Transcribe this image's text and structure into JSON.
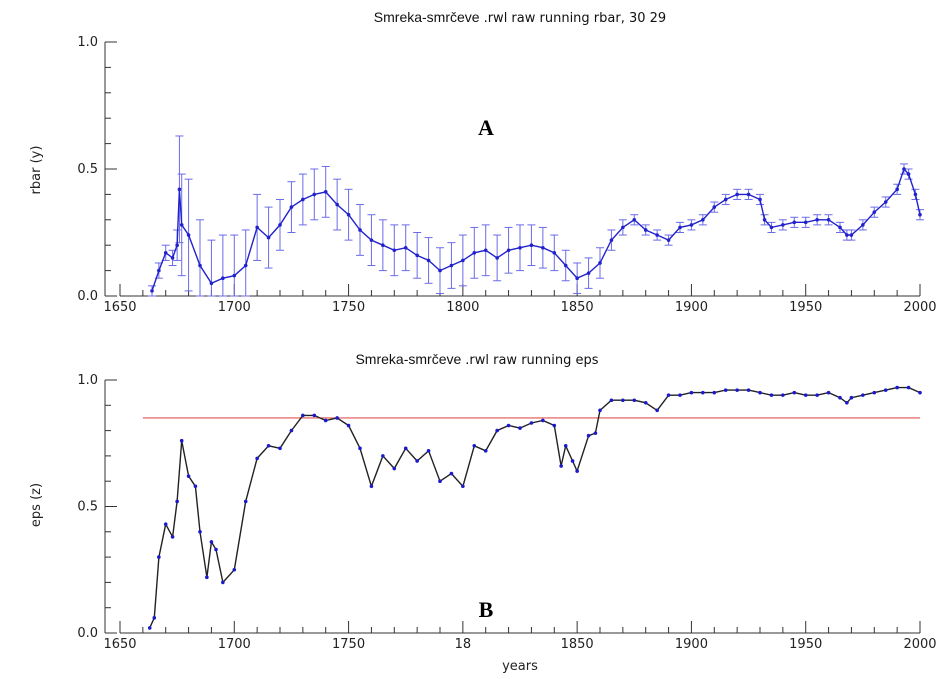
{
  "chart_data": [
    {
      "type": "line",
      "panel_label": "A",
      "title_main": "Smreka-smrčeve",
      "title_rest": ".rwl raw running rbar,   30  29",
      "xlabel": "",
      "ylabel": "rbar (y)",
      "xlim": [
        1650,
        2000
      ],
      "ylim": [
        0.0,
        1.0
      ],
      "x_ticks": [
        "1650",
        "1700",
        "1750",
        "1800",
        "1850",
        "1900",
        "1950",
        "2000"
      ],
      "y_ticks": [
        "0.0",
        "0.5",
        "1.0"
      ],
      "grid": false,
      "error_bars": true,
      "series": [
        {
          "color": "#2222cc",
          "x": [
            1664,
            1667,
            1670,
            1673,
            1675,
            1676,
            1677,
            1680,
            1685,
            1690,
            1695,
            1700,
            1705,
            1710,
            1715,
            1720,
            1725,
            1730,
            1735,
            1740,
            1745,
            1750,
            1755,
            1760,
            1765,
            1770,
            1775,
            1780,
            1785,
            1790,
            1795,
            1800,
            1805,
            1810,
            1815,
            1820,
            1825,
            1830,
            1835,
            1840,
            1845,
            1850,
            1855,
            1860,
            1865,
            1870,
            1875,
            1880,
            1885,
            1890,
            1895,
            1900,
            1905,
            1910,
            1915,
            1920,
            1925,
            1930,
            1932,
            1935,
            1940,
            1945,
            1950,
            1955,
            1960,
            1965,
            1968,
            1970,
            1975,
            1980,
            1985,
            1990,
            1993,
            1995,
            1998,
            2000
          ],
          "y": [
            0.02,
            0.1,
            0.17,
            0.15,
            0.2,
            0.42,
            0.28,
            0.24,
            0.12,
            0.05,
            0.07,
            0.08,
            0.12,
            0.27,
            0.23,
            0.28,
            0.35,
            0.38,
            0.4,
            0.41,
            0.36,
            0.32,
            0.26,
            0.22,
            0.2,
            0.18,
            0.19,
            0.16,
            0.14,
            0.1,
            0.12,
            0.14,
            0.17,
            0.18,
            0.15,
            0.18,
            0.19,
            0.2,
            0.19,
            0.17,
            0.12,
            0.07,
            0.09,
            0.13,
            0.22,
            0.27,
            0.3,
            0.26,
            0.24,
            0.22,
            0.27,
            0.28,
            0.3,
            0.35,
            0.38,
            0.4,
            0.4,
            0.38,
            0.3,
            0.27,
            0.28,
            0.29,
            0.29,
            0.3,
            0.3,
            0.27,
            0.24,
            0.24,
            0.28,
            0.33,
            0.37,
            0.42,
            0.5,
            0.48,
            0.4,
            0.32
          ],
          "err": [
            0.02,
            0.03,
            0.03,
            0.03,
            0.06,
            0.21,
            0.2,
            0.22,
            0.18,
            0.17,
            0.17,
            0.16,
            0.14,
            0.13,
            0.12,
            0.1,
            0.1,
            0.1,
            0.1,
            0.1,
            0.1,
            0.1,
            0.1,
            0.1,
            0.1,
            0.1,
            0.09,
            0.09,
            0.09,
            0.09,
            0.09,
            0.1,
            0.1,
            0.1,
            0.09,
            0.09,
            0.09,
            0.08,
            0.08,
            0.07,
            0.06,
            0.06,
            0.06,
            0.06,
            0.04,
            0.03,
            0.02,
            0.02,
            0.02,
            0.02,
            0.02,
            0.02,
            0.02,
            0.02,
            0.02,
            0.02,
            0.02,
            0.02,
            0.02,
            0.02,
            0.02,
            0.02,
            0.02,
            0.02,
            0.02,
            0.02,
            0.02,
            0.02,
            0.02,
            0.02,
            0.02,
            0.02,
            0.02,
            0.02,
            0.02,
            0.02
          ]
        }
      ]
    },
    {
      "type": "line",
      "panel_label": "B",
      "title_main": "Smreka-smrčeve",
      "title_rest": ".rwl raw running eps",
      "xlabel": "years",
      "ylabel": "eps (z)",
      "xlim": [
        1650,
        2000
      ],
      "ylim": [
        0.0,
        1.0
      ],
      "x_ticks": [
        "1650",
        "1700",
        "1750",
        "18",
        "1850",
        "1900",
        "1950",
        "2000"
      ],
      "y_ticks": [
        "0.0",
        "0.5",
        "1.0"
      ],
      "grid": false,
      "threshold": {
        "y": 0.85,
        "color": "#e05555"
      },
      "series": [
        {
          "color": "#1a1acc",
          "line_color": "#222222",
          "x": [
            1663,
            1665,
            1667,
            1670,
            1673,
            1675,
            1677,
            1680,
            1683,
            1685,
            1688,
            1690,
            1692,
            1695,
            1700,
            1705,
            1710,
            1715,
            1720,
            1725,
            1730,
            1735,
            1740,
            1745,
            1750,
            1755,
            1760,
            1765,
            1770,
            1775,
            1780,
            1785,
            1790,
            1795,
            1800,
            1805,
            1810,
            1815,
            1820,
            1825,
            1830,
            1835,
            1840,
            1843,
            1845,
            1848,
            1850,
            1855,
            1858,
            1860,
            1865,
            1870,
            1875,
            1880,
            1885,
            1890,
            1895,
            1900,
            1905,
            1910,
            1915,
            1920,
            1925,
            1930,
            1935,
            1940,
            1945,
            1950,
            1955,
            1960,
            1965,
            1968,
            1970,
            1975,
            1980,
            1985,
            1990,
            1995,
            2000
          ],
          "y": [
            0.02,
            0.06,
            0.3,
            0.43,
            0.38,
            0.52,
            0.76,
            0.62,
            0.58,
            0.4,
            0.22,
            0.36,
            0.33,
            0.2,
            0.25,
            0.52,
            0.69,
            0.74,
            0.73,
            0.8,
            0.86,
            0.86,
            0.84,
            0.85,
            0.82,
            0.73,
            0.58,
            0.7,
            0.65,
            0.73,
            0.68,
            0.72,
            0.6,
            0.63,
            0.58,
            0.74,
            0.72,
            0.8,
            0.82,
            0.81,
            0.83,
            0.84,
            0.82,
            0.66,
            0.74,
            0.68,
            0.64,
            0.78,
            0.79,
            0.88,
            0.92,
            0.92,
            0.92,
            0.91,
            0.88,
            0.94,
            0.94,
            0.95,
            0.95,
            0.95,
            0.96,
            0.96,
            0.96,
            0.95,
            0.94,
            0.94,
            0.95,
            0.94,
            0.94,
            0.95,
            0.93,
            0.91,
            0.93,
            0.94,
            0.95,
            0.96,
            0.97,
            0.97,
            0.95
          ]
        }
      ]
    }
  ]
}
